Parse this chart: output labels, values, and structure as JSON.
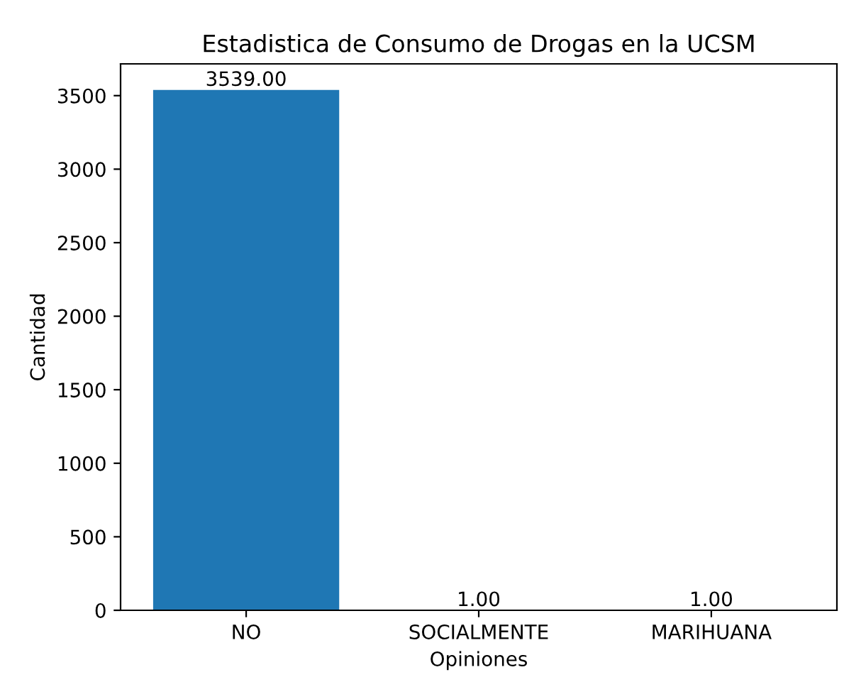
{
  "chart_data": {
    "type": "bar",
    "title": "Estadistica de Consumo de Drogas en la UCSM",
    "xlabel": "Opiniones",
    "ylabel": "Cantidad",
    "categories": [
      "NO",
      "SOCIALMENTE",
      "MARIHUANA"
    ],
    "values": [
      3539,
      1,
      1
    ],
    "value_labels": [
      "3539.00",
      "1.00",
      "1.00"
    ],
    "color": "#1f77b4",
    "ylim": [
      0,
      3716
    ],
    "yticks": [
      0,
      500,
      1000,
      1500,
      2000,
      2500,
      3000,
      3500
    ],
    "grid": false
  }
}
